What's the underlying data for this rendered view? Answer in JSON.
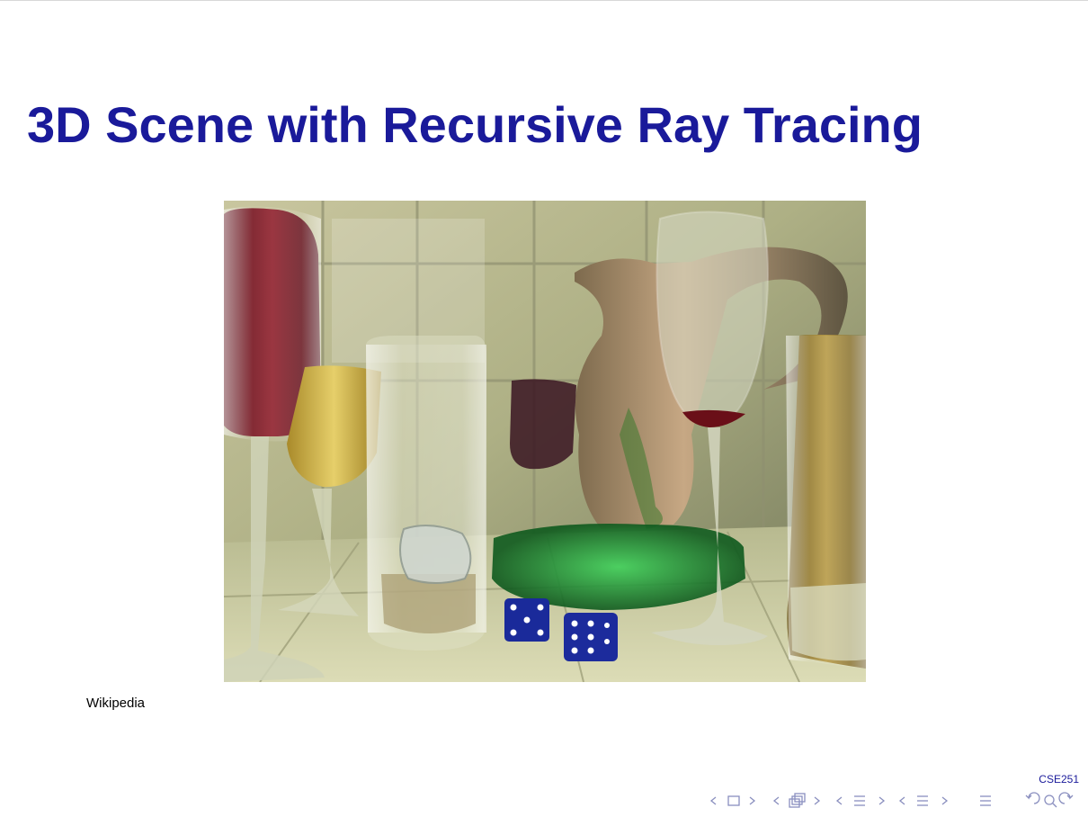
{
  "slide": {
    "title": "3D Scene with Recursive Ray Tracing",
    "caption": "Wikipedia",
    "footer_label": "CSE251"
  },
  "figure": {
    "description_icon": "ray-traced-glasses-scene-image"
  },
  "nav": {
    "icons": [
      "prev-frame-icon",
      "frame-icon",
      "next-frame-icon",
      "prev-subsection-icon",
      "subsection-icon",
      "next-subsection-icon",
      "prev-section-icon",
      "section-icon",
      "next-section-icon",
      "prev-slide-icon",
      "slide-icon",
      "next-slide-icon",
      "toc-icon",
      "back-icon",
      "search-icon",
      "forward-icon"
    ]
  }
}
